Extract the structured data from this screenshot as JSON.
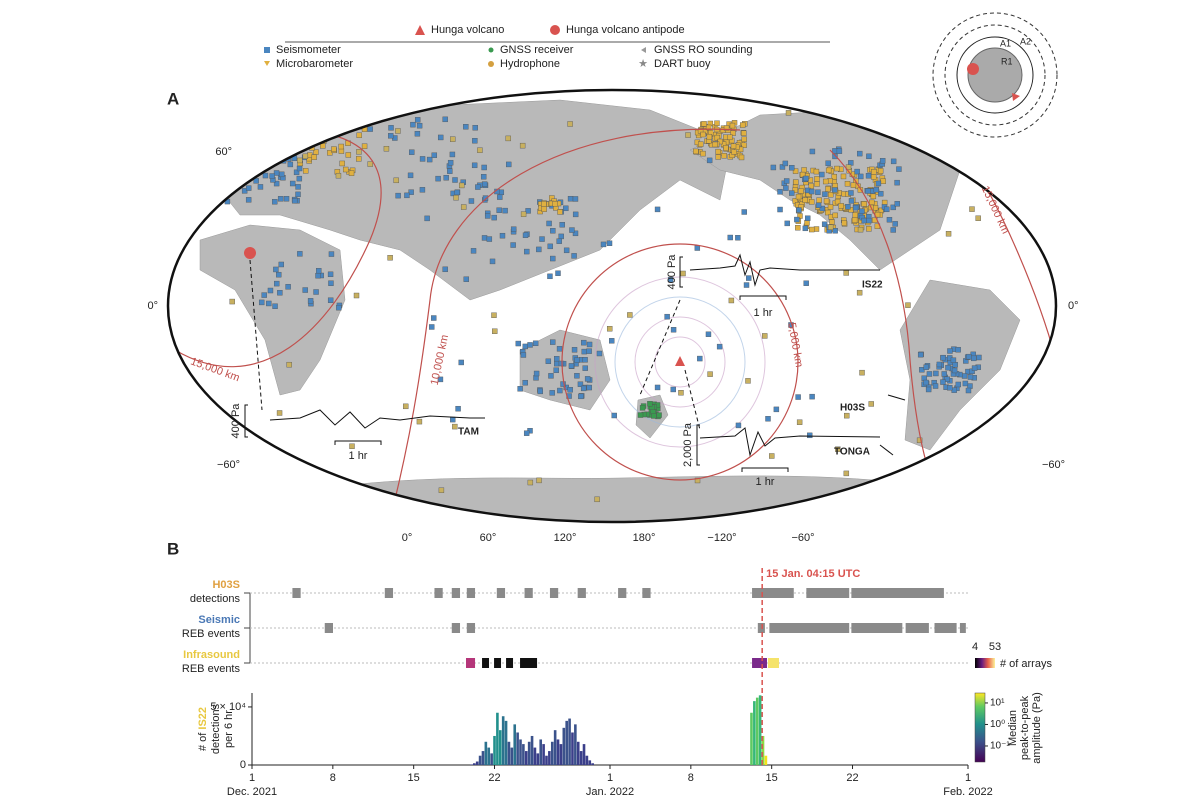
{
  "legend": {
    "hunga": "Hunga volcano",
    "antipode": "Hunga volcano antipode",
    "items": [
      "Seismometer",
      "Microbarometer",
      "GNSS receiver",
      "Hydrophone",
      "GNSS RO sounding",
      "DART buoy"
    ]
  },
  "inset": {
    "labels": [
      "A2",
      "A1",
      "R1"
    ]
  },
  "panel_a": {
    "label": "A",
    "lat_labels": [
      "60°",
      "0°",
      "−60°"
    ],
    "lon_labels": [
      "0°",
      "60°",
      "120°",
      "180°",
      "−120°",
      "−60°"
    ],
    "distances": [
      "15,000 km",
      "10,000 km",
      "5,000 km"
    ],
    "stations": [
      "IS22",
      "TAM",
      "H03S",
      "TONGA"
    ],
    "scales": {
      "small": "400 Pa",
      "large": "2,000 Pa",
      "time": "1 hr"
    }
  },
  "panel_b": {
    "label": "B",
    "rows": [
      {
        "name": "H03S",
        "sub": "detections",
        "color": "#e0a040",
        "intervals": [
          [
            3.5,
            4.3
          ],
          [
            11.5,
            12.3
          ],
          [
            15.8,
            16.6
          ],
          [
            17.3,
            18.1
          ],
          [
            18.6,
            19.4
          ],
          [
            21.2,
            22.0
          ],
          [
            23.6,
            24.4
          ],
          [
            25.8,
            26.6
          ],
          [
            28.2,
            29.0
          ],
          [
            31.7,
            32.5
          ],
          [
            33.8,
            34.6
          ],
          [
            43.3,
            47.0
          ],
          [
            48.0,
            51.8
          ],
          [
            51.9,
            60.0
          ]
        ]
      },
      {
        "name": "Seismic",
        "sub": "REB events",
        "color": "#4a78b5",
        "intervals": [
          [
            6.3,
            7.1
          ],
          [
            17.3,
            18.1
          ],
          [
            18.6,
            19.4
          ],
          [
            43.8,
            44.5
          ],
          [
            44.8,
            51.8
          ],
          [
            51.9,
            56.4
          ],
          [
            56.6,
            58.7
          ],
          [
            59.1,
            61.1
          ],
          [
            61.3,
            61.9
          ]
        ]
      },
      {
        "name": "Infrasound",
        "sub": "REB events",
        "color": "#e8c840",
        "intervals": [
          [
            18.53,
            19.4
          ],
          [
            19.92,
            20.61
          ],
          [
            20.96,
            21.65
          ],
          [
            22.0,
            22.69
          ],
          [
            23.21,
            24.77
          ],
          [
            43.3,
            44.68
          ],
          [
            44.68,
            45.72
          ]
        ],
        "colors": [
          "#b5367a",
          "#111111",
          "#111111",
          "#111111",
          "#111111",
          "#7a2a8a",
          "#f5e36a"
        ]
      }
    ],
    "event": {
      "x": 44.177,
      "label": "15 Jan. 04:15 UTC",
      "color": "#d9534f"
    },
    "colorbar_arrays": {
      "lim": [
        4,
        53
      ],
      "label": "# of arrays"
    },
    "colorbar_amplitude": {
      "lim": [
        0.018,
        29
      ],
      "log": true,
      "ticks": [
        {
          "value": 10,
          "label": "10¹"
        },
        {
          "value": 1,
          "label": "10⁰"
        },
        {
          "value": 0.1,
          "label": "10⁻¹"
        }
      ],
      "label": [
        "Median",
        "peak-to-peak",
        "amplitude (Pa)"
      ]
    }
  },
  "chart_data": {
    "type": "bar",
    "ylabel": [
      "# of ",
      "IS22",
      "detections",
      "per 6 hr"
    ],
    "x": [
      19.0,
      19.25,
      19.5,
      19.75,
      20.0,
      20.25,
      20.5,
      20.75,
      21.0,
      21.25,
      21.5,
      21.75,
      22.0,
      22.25,
      22.5,
      22.75,
      23.0,
      23.25,
      23.5,
      23.75,
      24.0,
      24.25,
      24.5,
      24.75,
      25.0,
      25.25,
      25.5,
      25.75,
      26.0,
      26.25,
      26.5,
      26.75,
      27.0,
      27.25,
      27.5,
      27.75,
      28.0,
      28.25,
      28.5,
      28.75,
      29.0,
      29.25,
      29.5,
      43.25,
      43.5,
      43.75,
      44.0,
      44.25,
      44.5
    ],
    "values": [
      500,
      1500,
      3000,
      8000,
      12000,
      20000,
      15000,
      10000,
      25000,
      45000,
      30000,
      42000,
      38000,
      20000,
      15000,
      35000,
      28000,
      22000,
      18000,
      12000,
      20000,
      25000,
      15000,
      10000,
      22000,
      18000,
      8000,
      12000,
      20000,
      30000,
      22000,
      18000,
      32000,
      38000,
      40000,
      28000,
      35000,
      20000,
      12000,
      18000,
      8000,
      4000,
      1500,
      45000,
      55000,
      58000,
      60000,
      25000,
      8000
    ],
    "colors": [
      "#3b3f8a",
      "#3b3f8a",
      "#3b3f8a",
      "#3b528b",
      "#3b528b",
      "#2c728e",
      "#2c728e",
      "#3b528b",
      "#21908c",
      "#21908c",
      "#21908c",
      "#2c728e",
      "#2c728e",
      "#3b528b",
      "#3b528b",
      "#2c728e",
      "#3b528b",
      "#3b528b",
      "#3b528b",
      "#3b3f8a",
      "#3b528b",
      "#3b528b",
      "#3b3f8a",
      "#3b3f8a",
      "#3b528b",
      "#3b3f8a",
      "#3b3f8a",
      "#3b3f8a",
      "#3b528b",
      "#3b528b",
      "#3b3f8a",
      "#3b3f8a",
      "#3b528b",
      "#3b528b",
      "#3b528b",
      "#3b3f8a",
      "#3b528b",
      "#3b3f8a",
      "#3b3f8a",
      "#3b3f8a",
      "#3b3f8a",
      "#3b3f8a",
      "#3b3f8a",
      "#5ec962",
      "#35b779",
      "#5ec962",
      "#35b779",
      "#90d743",
      "#f1e51d"
    ],
    "xlim": [
      0,
      62
    ],
    "xticks": [
      {
        "value": 0,
        "label": "1"
      },
      {
        "value": 7,
        "label": "8"
      },
      {
        "value": 14,
        "label": "15"
      },
      {
        "value": 21,
        "label": "22"
      },
      {
        "value": 31,
        "label": "1"
      },
      {
        "value": 38,
        "label": "8"
      },
      {
        "value": 45,
        "label": "15"
      },
      {
        "value": 52,
        "label": "22"
      },
      {
        "value": 62,
        "label": "1"
      }
    ],
    "x_month_labels": [
      {
        "value": 0,
        "label": "Dec. 2021"
      },
      {
        "value": 31,
        "label": "Jan. 2022"
      },
      {
        "value": 62,
        "label": "Feb. 2022"
      }
    ],
    "ylim": [
      0,
      62000
    ],
    "yticks": [
      0,
      {
        "value": 50000,
        "label": "5 × 10⁴"
      }
    ]
  }
}
